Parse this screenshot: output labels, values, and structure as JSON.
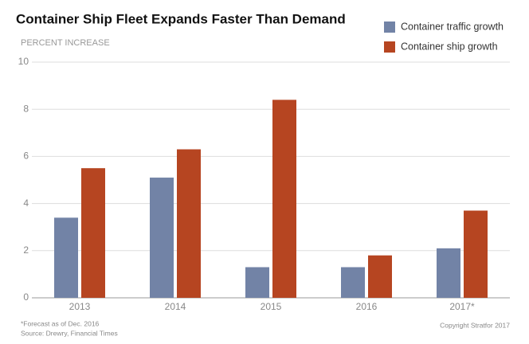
{
  "chart_data": {
    "type": "bar",
    "title": "Container Ship Fleet Expands Faster Than Demand",
    "y_label": "PERCENT INCREASE",
    "categories": [
      "2013",
      "2014",
      "2015",
      "2016",
      "2017*"
    ],
    "series": [
      {
        "name": "Container traffic growth",
        "color": "#7283a6",
        "values": [
          3.4,
          5.1,
          1.3,
          1.3,
          2.1
        ]
      },
      {
        "name": "Container ship growth",
        "color": "#b64521",
        "values": [
          5.5,
          6.3,
          8.4,
          1.8,
          3.7
        ]
      }
    ],
    "ylim": [
      0,
      10
    ],
    "yticks": [
      0,
      2,
      4,
      6,
      8,
      10
    ],
    "grid": true,
    "notes": [
      "*Forecast as of Dec. 2016",
      "Source: Drewry, Financial Times"
    ],
    "copyright": "Copyright Stratfor 2017"
  }
}
